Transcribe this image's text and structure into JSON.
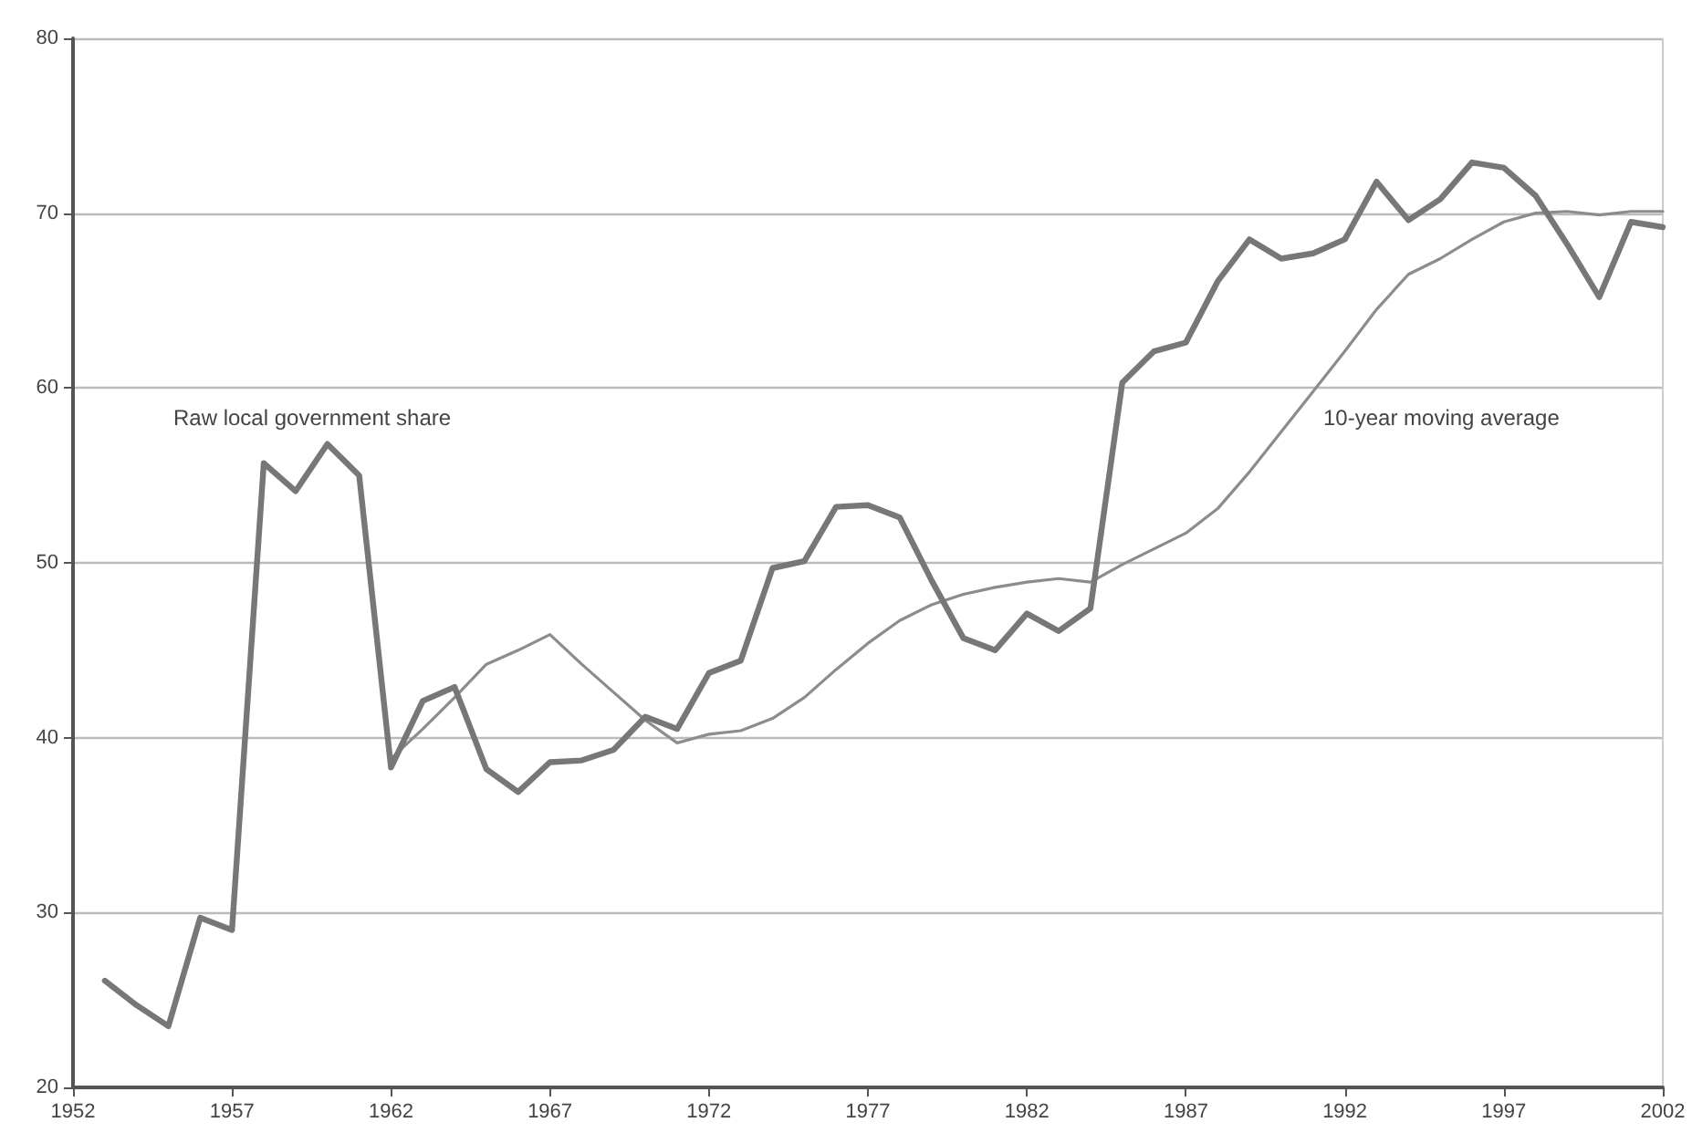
{
  "chart_data": {
    "type": "line",
    "xlim": [
      1952,
      2002
    ],
    "xticks": [
      1952,
      1957,
      1962,
      1967,
      1972,
      1977,
      1982,
      1987,
      1992,
      1997,
      2002
    ],
    "ylim": [
      20,
      80
    ],
    "yticks": [
      20,
      30,
      40,
      50,
      60,
      70,
      80
    ],
    "grid": "y",
    "legend": false,
    "marker": "none",
    "line_style": "solid",
    "series": [
      {
        "name": "Raw local government share",
        "color": "#777777",
        "x": [
          1953,
          1954,
          1955,
          1956,
          1957,
          1958,
          1959,
          1960,
          1961,
          1962,
          1963,
          1964,
          1965,
          1966,
          1967,
          1968,
          1969,
          1970,
          1971,
          1972,
          1973,
          1974,
          1975,
          1976,
          1977,
          1978,
          1979,
          1980,
          1981,
          1982,
          1983,
          1984,
          1985,
          1986,
          1987,
          1988,
          1989,
          1990,
          1991,
          1992,
          1993,
          1994,
          1995,
          1996,
          1997,
          1998,
          1999,
          2000,
          2001,
          2002
        ],
        "values": [
          26.1,
          24.7,
          23.5,
          29.7,
          29.0,
          55.7,
          54.1,
          56.8,
          55.0,
          38.3,
          42.1,
          42.9,
          38.2,
          36.9,
          38.6,
          38.7,
          39.3,
          41.2,
          40.5,
          43.7,
          44.4,
          49.7,
          50.1,
          53.2,
          53.3,
          52.6,
          49.0,
          45.7,
          45.0,
          47.1,
          46.1,
          47.4,
          60.3,
          62.1,
          62.6,
          66.1,
          68.5,
          67.4,
          67.7,
          68.5,
          71.8,
          69.6,
          70.8,
          72.9,
          72.6,
          71.0,
          68.2,
          65.2,
          69.5,
          69.2
        ]
      },
      {
        "name": "10-year moving average",
        "color": "#8c8c8c",
        "x": [
          1962,
          1963,
          1964,
          1965,
          1966,
          1967,
          1968,
          1969,
          1970,
          1971,
          1972,
          1973,
          1974,
          1975,
          1976,
          1977,
          1978,
          1979,
          1980,
          1981,
          1982,
          1983,
          1984,
          1985,
          1986,
          1987,
          1988,
          1989,
          1990,
          1991,
          1992,
          1993,
          1994,
          1995,
          1996,
          1997,
          1998,
          1999,
          2000,
          2001,
          2002
        ],
        "values": [
          38.8,
          40.5,
          42.3,
          44.2,
          45.0,
          45.9,
          44.2,
          42.6,
          41.0,
          39.7,
          40.2,
          40.4,
          41.1,
          42.3,
          43.9,
          45.4,
          46.7,
          47.6,
          48.2,
          48.6,
          48.9,
          49.1,
          48.9,
          49.9,
          50.8,
          51.7,
          53.1,
          55.2,
          57.5,
          59.8,
          62.1,
          64.5,
          66.5,
          67.4,
          68.5,
          69.5,
          70.0,
          70.1,
          69.9,
          70.1,
          70.1
        ]
      }
    ]
  }
}
